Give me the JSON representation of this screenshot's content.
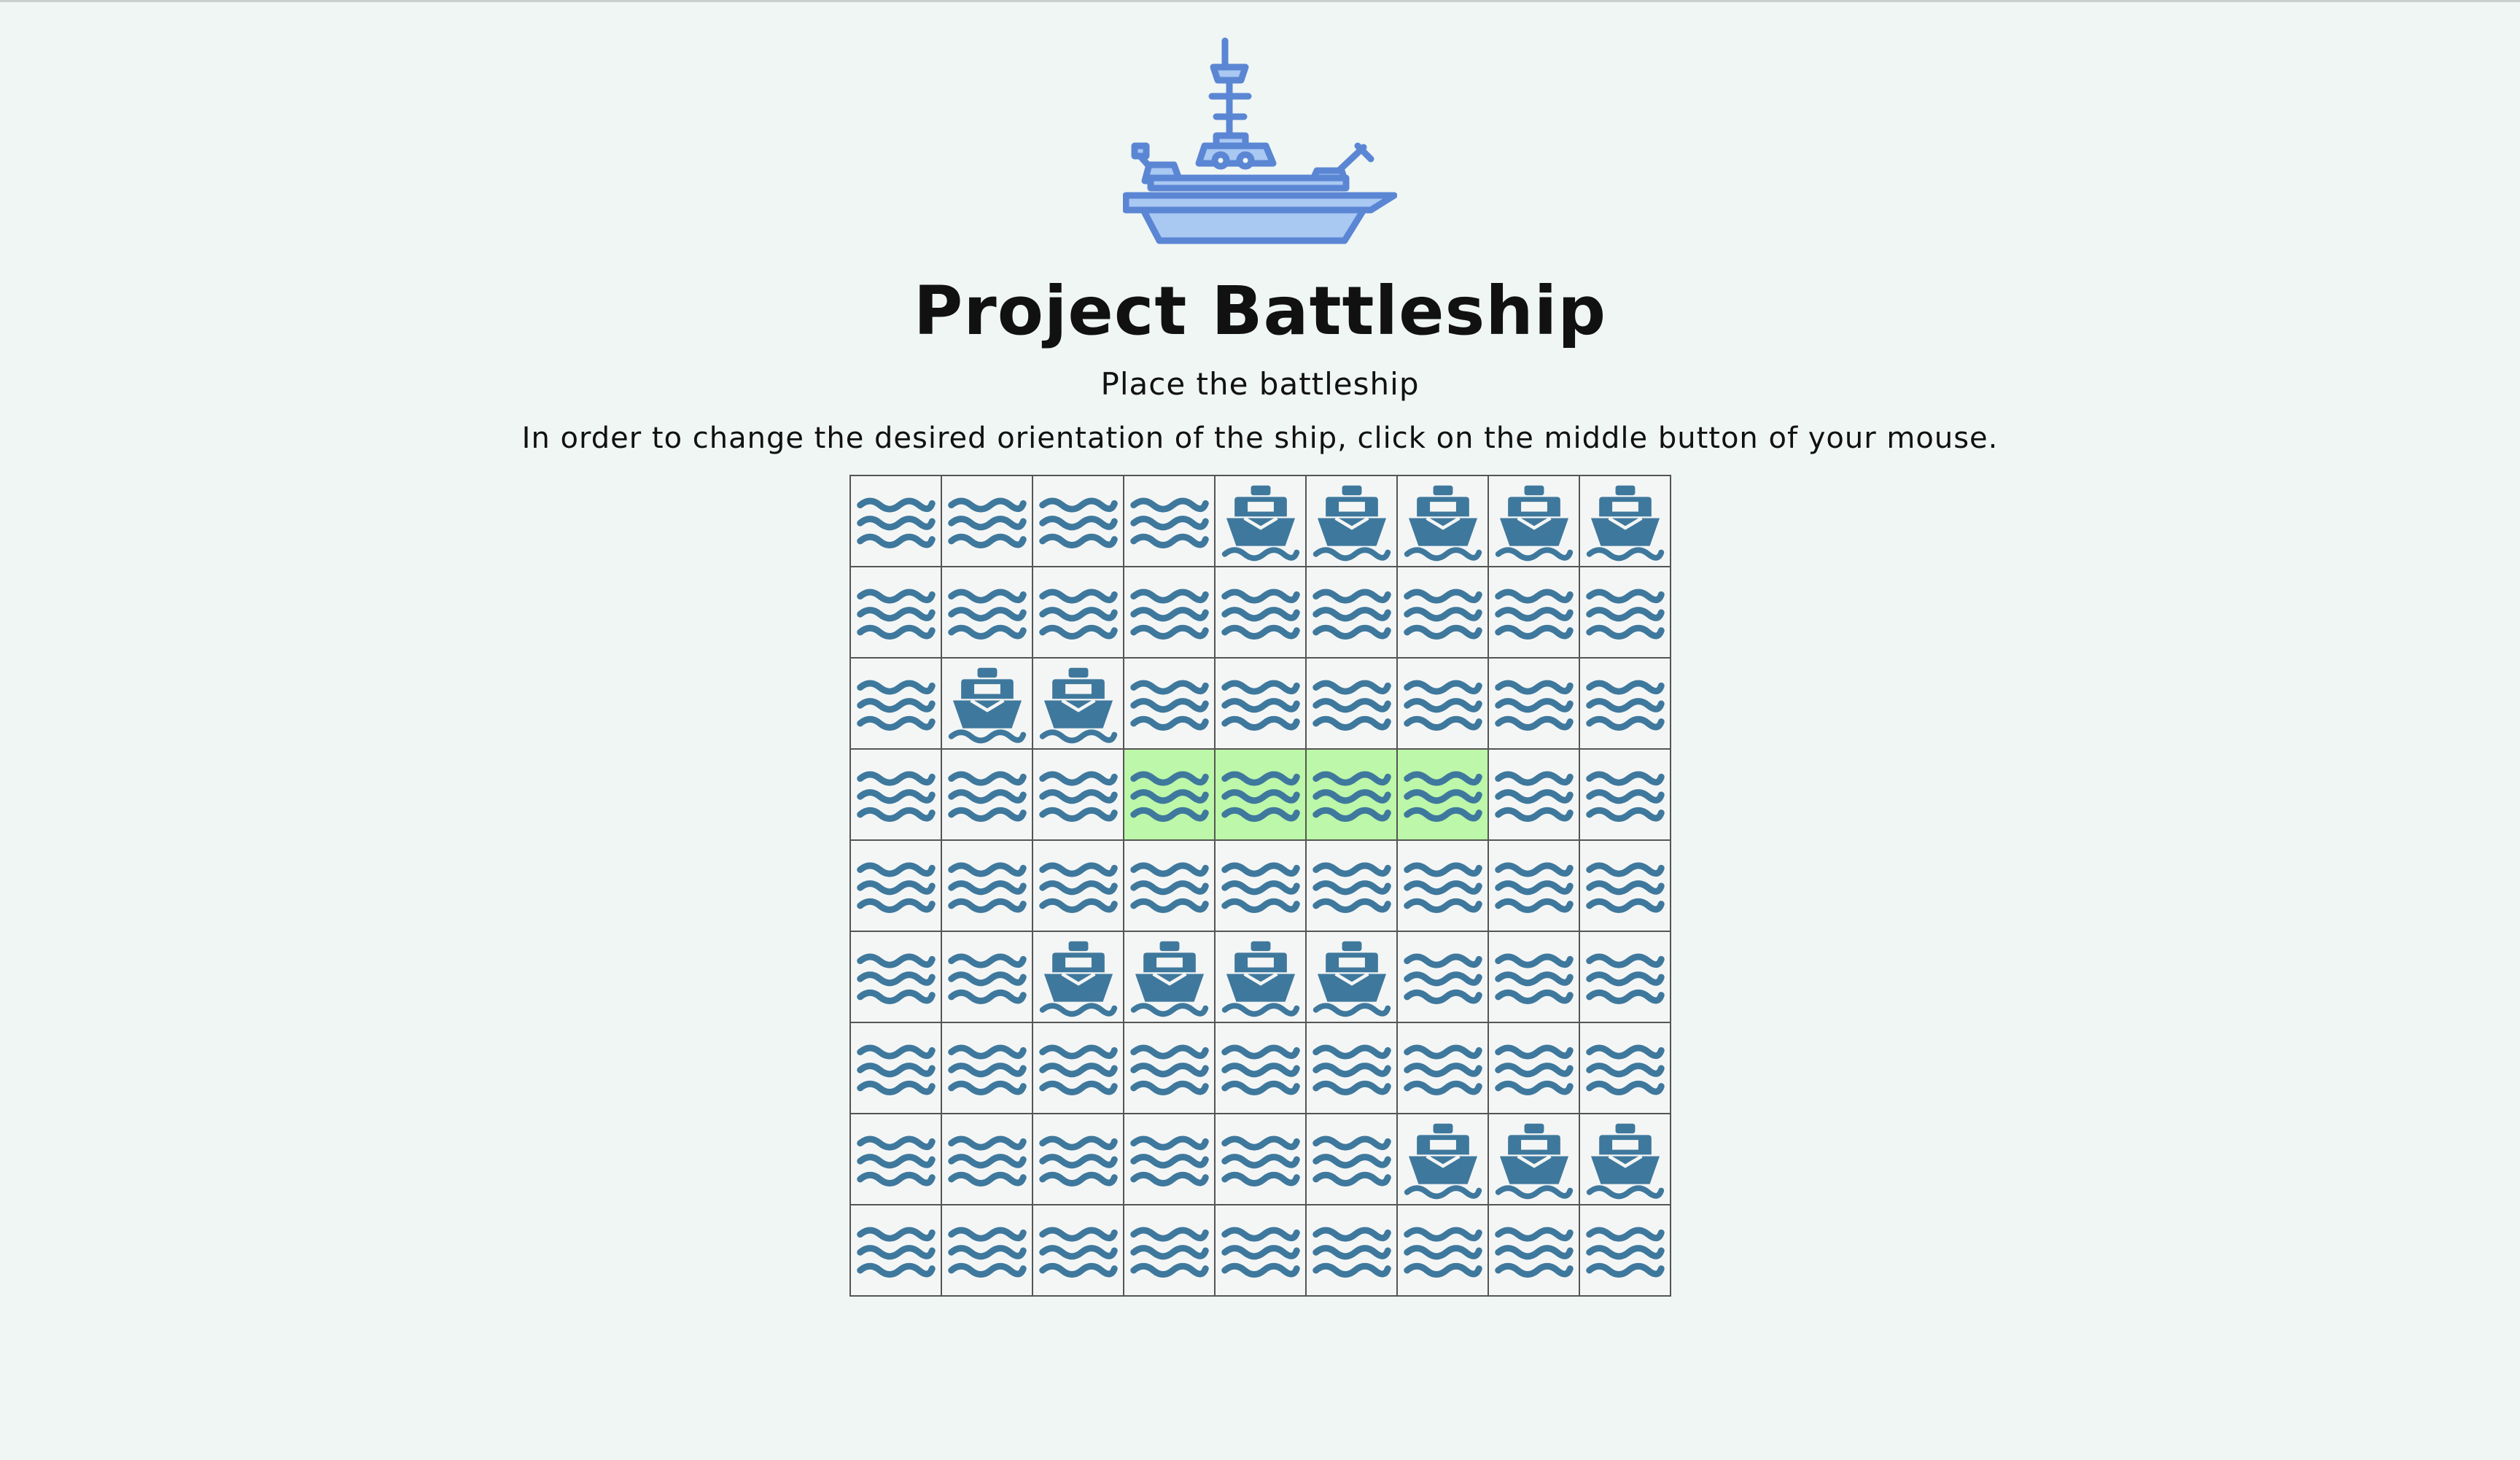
{
  "header": {
    "title": "Project Battleship",
    "subtitle": "Place the battleship",
    "instructions": "In order to change the desired orientation of the ship, click on the middle button of your mouse."
  },
  "icons": {
    "logo": "battleship-icon",
    "water": "water-waves-icon",
    "ship": "ship-icon"
  },
  "colors": {
    "background": "#f0f6f4",
    "icon": "#3f789d",
    "logo_stroke": "#5b86d4",
    "logo_fill": "#a9c8f2",
    "highlight": "#bdf7a9"
  },
  "board": {
    "rows": 9,
    "columns": 9,
    "grid": [
      [
        "water",
        "water",
        "water",
        "water",
        "ship",
        "ship",
        "ship",
        "ship",
        "ship"
      ],
      [
        "water",
        "water",
        "water",
        "water",
        "water",
        "water",
        "water",
        "water",
        "water"
      ],
      [
        "water",
        "ship",
        "ship",
        "water",
        "water",
        "water",
        "water",
        "water",
        "water"
      ],
      [
        "water",
        "water",
        "water",
        "preview",
        "preview",
        "preview",
        "preview",
        "water",
        "water"
      ],
      [
        "water",
        "water",
        "water",
        "water",
        "water",
        "water",
        "water",
        "water",
        "water"
      ],
      [
        "water",
        "water",
        "ship",
        "ship",
        "ship",
        "ship",
        "water",
        "water",
        "water"
      ],
      [
        "water",
        "water",
        "water",
        "water",
        "water",
        "water",
        "water",
        "water",
        "water"
      ],
      [
        "water",
        "water",
        "water",
        "water",
        "water",
        "water",
        "ship",
        "ship",
        "ship"
      ],
      [
        "water",
        "water",
        "water",
        "water",
        "water",
        "water",
        "water",
        "water",
        "water"
      ]
    ]
  }
}
